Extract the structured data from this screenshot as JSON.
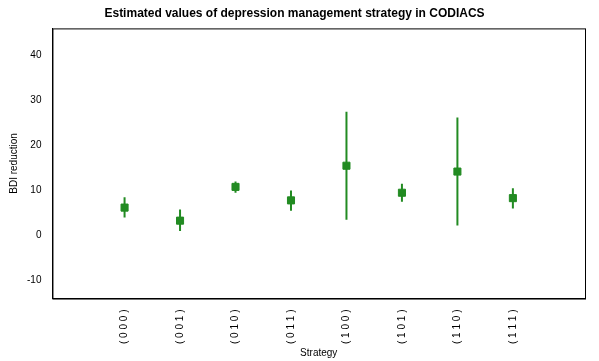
{
  "chart_data": {
    "type": "scatter",
    "title": "Estimated values of depression management strategy in CODIACS",
    "x_label": "Strategy",
    "y_label": "BDI reduction",
    "categories": [
      "( 0 0 0 )",
      "( 0 0 1 )",
      "( 0 1 0 )",
      "( 0 1 1 )",
      "( 1 0 0 )",
      "( 1 0 1 )",
      "( 1 1 0 )",
      "( 1 1 1 )"
    ],
    "values": [
      6.2,
      3.3,
      10.8,
      7.8,
      15.5,
      9.5,
      14.2,
      8.3
    ],
    "lower": [
      4.0,
      1.0,
      9.5,
      5.5,
      3.5,
      7.5,
      2.2,
      6.0
    ],
    "upper": [
      8.5,
      5.8,
      12.0,
      10.0,
      27.5,
      11.5,
      26.2,
      10.5
    ],
    "color": "#228b22",
    "marker": "square",
    "ylim": [
      -14,
      46
    ],
    "yticks": [
      -10,
      0,
      10,
      20,
      30,
      40
    ],
    "grid": false
  }
}
